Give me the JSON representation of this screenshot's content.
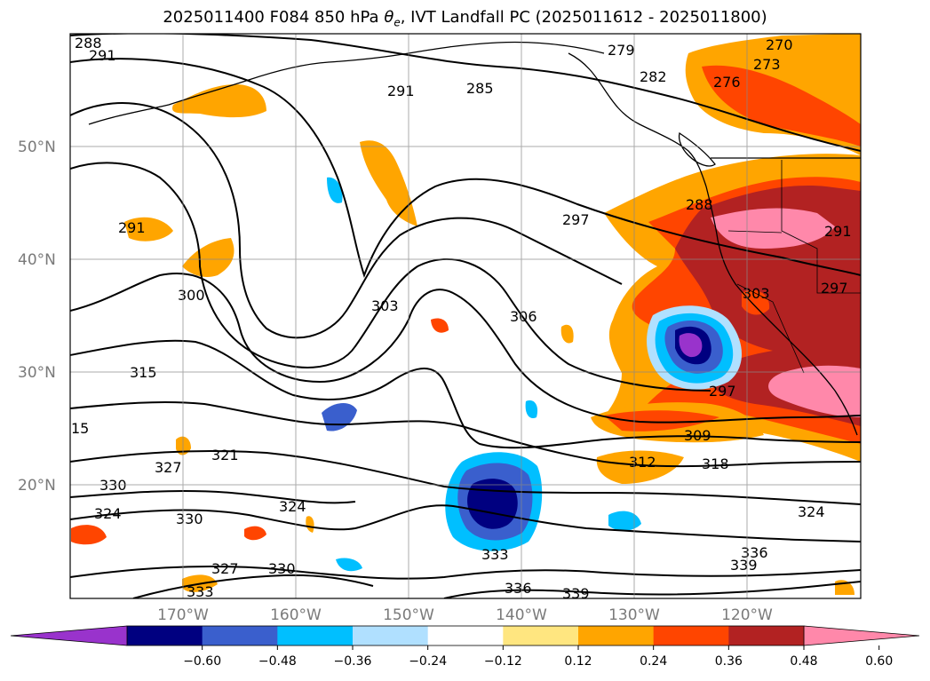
{
  "title": {
    "prefix": "2025011400 F084 850 hPa ",
    "theta": "θ",
    "theta_sub": "e",
    "suffix": ", IVT Landfall PC (2025011612 - 2025011800)"
  },
  "map": {
    "lat_labels": [
      "50°N",
      "40°N",
      "30°N",
      "20°N"
    ],
    "lon_labels": [
      "170°W",
      "160°W",
      "150°W",
      "140°W",
      "130°W",
      "120°W"
    ],
    "contour_labels": [
      "288",
      "291",
      "279",
      "282",
      "285",
      "270",
      "273",
      "276",
      "291",
      "291",
      "297",
      "288",
      "300",
      "303",
      "306",
      "303",
      "315",
      "297",
      "309",
      "15",
      "312",
      "318",
      "321",
      "330",
      "327",
      "324",
      "324",
      "330",
      "324",
      "333",
      "336",
      "339",
      "327",
      "330",
      "336",
      "339",
      "333",
      "291",
      "297"
    ]
  },
  "colorbar": {
    "tick_labels": [
      "−0.60",
      "−0.48",
      "−0.36",
      "−0.24",
      "−0.12",
      "0.12",
      "0.24",
      "0.36",
      "0.48",
      "0.60"
    ],
    "colors": [
      "#9933cc",
      "#000080",
      "#3a5fcd",
      "#00bfff",
      "#b0e0ff",
      "#ffffff",
      "#ffe680",
      "#ffa500",
      "#ff4500",
      "#b22222",
      "#ff88aa"
    ]
  }
}
